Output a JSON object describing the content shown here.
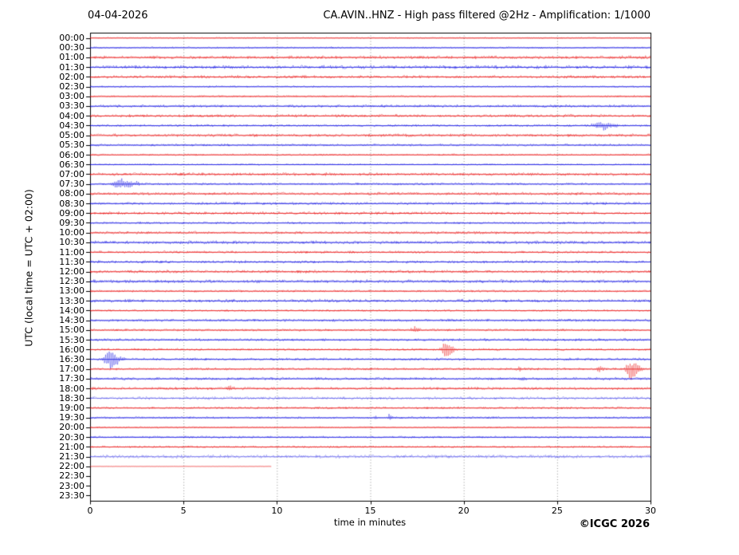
{
  "header": {
    "date": "04-04-2026",
    "title": "CA.AVIN..HNZ - High pass filtered @2Hz - Amplification: 1/1000"
  },
  "footer": {
    "copyright": "©ICGC 2026"
  },
  "chart_data": {
    "type": "line",
    "subtype": "seismogram-helicorder",
    "title": "CA.AVIN..HNZ - High pass filtered @2Hz - Amplification: 1/1000",
    "date": "04-04-2026",
    "xlabel": "time in minutes",
    "ylabel": "UTC (local time = UTC + 02:00)",
    "xlim": [
      0,
      30
    ],
    "x_ticks": [
      0,
      5,
      10,
      15,
      20,
      25,
      30
    ],
    "grid_x": [
      5,
      10,
      15,
      20,
      25
    ],
    "minutes_per_row": 30,
    "colors": {
      "hour_trace": "#e80000",
      "half_hour_trace": "#0000e0",
      "grid": "#888888",
      "axis": "#000000"
    },
    "rows": [
      {
        "t": "00:00",
        "n": 0.5
      },
      {
        "t": "00:30",
        "n": 0.7
      },
      {
        "t": "01:00",
        "n": 1.4
      },
      {
        "t": "01:30",
        "n": 1.5
      },
      {
        "t": "02:00",
        "n": 1.3
      },
      {
        "t": "02:30",
        "n": 0.7
      },
      {
        "t": "03:00",
        "n": 0.8
      },
      {
        "t": "03:30",
        "n": 1.2
      },
      {
        "t": "04:00",
        "n": 1.3
      },
      {
        "t": "04:30",
        "n": 1.0
      },
      {
        "t": "05:00",
        "n": 1.3
      },
      {
        "t": "05:30",
        "n": 1.0
      },
      {
        "t": "06:00",
        "n": 0.8
      },
      {
        "t": "06:30",
        "n": 0.7
      },
      {
        "t": "07:00",
        "n": 1.3
      },
      {
        "t": "07:30",
        "n": 1.0
      },
      {
        "t": "08:00",
        "n": 1.2
      },
      {
        "t": "08:30",
        "n": 1.2
      },
      {
        "t": "09:00",
        "n": 1.3
      },
      {
        "t": "09:30",
        "n": 1.0
      },
      {
        "t": "10:00",
        "n": 1.2
      },
      {
        "t": "10:30",
        "n": 1.4
      },
      {
        "t": "11:00",
        "n": 1.1
      },
      {
        "t": "11:30",
        "n": 1.2
      },
      {
        "t": "12:00",
        "n": 1.3
      },
      {
        "t": "12:30",
        "n": 1.4
      },
      {
        "t": "13:00",
        "n": 1.0
      },
      {
        "t": "13:30",
        "n": 1.4
      },
      {
        "t": "14:00",
        "n": 0.9
      },
      {
        "t": "14:30",
        "n": 1.2
      },
      {
        "t": "15:00",
        "n": 1.0
      },
      {
        "t": "15:30",
        "n": 1.2
      },
      {
        "t": "16:00",
        "n": 1.0
      },
      {
        "t": "16:30",
        "n": 1.1
      },
      {
        "t": "17:00",
        "n": 1.0
      },
      {
        "t": "17:30",
        "n": 1.2
      },
      {
        "t": "18:00",
        "n": 1.2
      },
      {
        "t": "18:30",
        "n": 1.4,
        "light": true
      },
      {
        "t": "19:00",
        "n": 1.0
      },
      {
        "t": "19:30",
        "n": 0.9
      },
      {
        "t": "20:00",
        "n": 0.7
      },
      {
        "t": "20:30",
        "n": 0.9
      },
      {
        "t": "21:00",
        "n": 0.9
      },
      {
        "t": "21:30",
        "n": 1.5,
        "light": true
      },
      {
        "t": "22:00",
        "n": 0.3,
        "light": true,
        "end": 9.7
      },
      {
        "t": "22:30",
        "n": 0
      },
      {
        "t": "23:00",
        "n": 0
      },
      {
        "t": "23:30",
        "n": 0
      }
    ],
    "events": [
      {
        "row": "04:30",
        "x": 27.3,
        "w": 0.45,
        "a": 5.5
      },
      {
        "row": "05:30",
        "x": 21.7,
        "w": 0.06,
        "a": 2
      },
      {
        "row": "07:30",
        "x": 1.6,
        "w": 0.5,
        "a": 6.5
      },
      {
        "row": "10:00",
        "x": 22.6,
        "w": 0.08,
        "a": 1.5
      },
      {
        "row": "13:00",
        "x": 5.7,
        "w": 0.1,
        "a": 1.5
      },
      {
        "row": "15:00",
        "x": 17.3,
        "w": 0.2,
        "a": 4
      },
      {
        "row": "16:00",
        "x": 19.0,
        "w": 0.25,
        "a": 11
      },
      {
        "row": "16:30",
        "x": 1.0,
        "w": 0.3,
        "a": 14
      },
      {
        "row": "17:00",
        "x": 23.0,
        "w": 0.25,
        "a": 3
      },
      {
        "row": "17:00",
        "x": 27.2,
        "w": 0.2,
        "a": 4
      },
      {
        "row": "17:00",
        "x": 28.9,
        "w": 0.3,
        "a": 13
      },
      {
        "row": "17:30",
        "x": 23.1,
        "w": 0.1,
        "a": 2
      },
      {
        "row": "18:00",
        "x": 7.4,
        "w": 0.2,
        "a": 4.5
      },
      {
        "row": "19:30",
        "x": 15.3,
        "w": 0.12,
        "a": 2.5
      },
      {
        "row": "19:30",
        "x": 16.0,
        "w": 0.12,
        "a": 3.5
      },
      {
        "row": "21:00",
        "x": 6.0,
        "w": 0.12,
        "a": 2.5
      }
    ]
  }
}
